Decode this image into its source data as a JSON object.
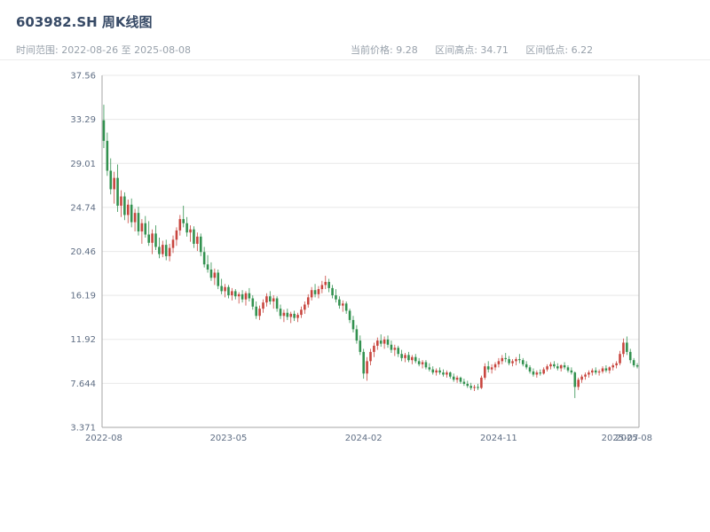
{
  "header": {
    "title": "603982.SH 周K线图",
    "time_range": {
      "label": "时间范围: ",
      "value": "2022-08-26 至 2025-08-08"
    },
    "stats": [
      {
        "label": "当前价格: ",
        "value": "9.28"
      },
      {
        "label": "区间高点: ",
        "value": "34.71"
      },
      {
        "label": "区间低点: ",
        "value": "6.22"
      }
    ]
  },
  "axes": {
    "y_min": 3.371,
    "y_max": 37.56,
    "y_ticks": [
      {
        "value": 3.371,
        "label": "3.371"
      },
      {
        "value": 7.644,
        "label": "7.644"
      },
      {
        "value": 11.92,
        "label": "11.92"
      },
      {
        "value": 16.19,
        "label": "16.19"
      },
      {
        "value": 20.46,
        "label": "20.46"
      },
      {
        "value": 24.74,
        "label": "24.74"
      },
      {
        "value": 29.01,
        "label": "29.01"
      },
      {
        "value": 33.29,
        "label": "33.29"
      },
      {
        "value": 37.56,
        "label": "37.56"
      }
    ],
    "x_ticks": [
      {
        "label": "2022-08",
        "week_index": 0
      },
      {
        "label": "2023-05",
        "week_index": 36
      },
      {
        "label": "2024-02",
        "week_index": 75
      },
      {
        "label": "2024-11",
        "week_index": 114
      },
      {
        "label": "2025-07",
        "week_index": 149
      },
      {
        "label": "2025-08",
        "week_index": 153
      }
    ]
  },
  "chart_data": {
    "type": "candlestick",
    "symbol": "603982.SH",
    "period": "weekly",
    "title": "603982.SH 周K线图",
    "date_start": "2022-08-26",
    "date_end": "2025-08-08",
    "current_price": 9.28,
    "range_high": 34.71,
    "range_low": 6.22,
    "ylim": [
      3.371,
      37.56
    ],
    "legend_position": "none",
    "grid": true,
    "colors": {
      "up": "#c8453e",
      "down": "#32914f",
      "grid": "#e8e8e8",
      "axis": "#a6a6a6"
    },
    "columns": [
      "date",
      "open",
      "high",
      "low",
      "close"
    ],
    "candles": [
      [
        "2022-08-26",
        33.2,
        34.71,
        30.5,
        31.2
      ],
      [
        "2022-09-02",
        31.2,
        32.0,
        27.8,
        28.3
      ],
      [
        "2022-09-09",
        28.3,
        29.5,
        26.0,
        26.5
      ],
      [
        "2022-09-16",
        26.5,
        28.2,
        25.1,
        27.6
      ],
      [
        "2022-09-23",
        27.6,
        28.9,
        24.3,
        24.9
      ],
      [
        "2022-09-30",
        24.9,
        26.4,
        23.8,
        25.8
      ],
      [
        "2022-10-07",
        25.8,
        26.2,
        23.5,
        24.0
      ],
      [
        "2022-10-14",
        24.0,
        25.5,
        23.2,
        25.0
      ],
      [
        "2022-10-21",
        25.0,
        25.6,
        22.8,
        23.3
      ],
      [
        "2022-10-28",
        23.3,
        24.6,
        22.4,
        24.2
      ],
      [
        "2022-11-04",
        24.2,
        24.8,
        22.0,
        22.4
      ],
      [
        "2022-11-11",
        22.4,
        23.6,
        21.2,
        23.2
      ],
      [
        "2022-11-18",
        23.2,
        23.9,
        21.8,
        22.1
      ],
      [
        "2022-11-25",
        22.1,
        23.4,
        21.0,
        21.3
      ],
      [
        "2022-12-02",
        21.3,
        22.6,
        20.2,
        22.2
      ],
      [
        "2022-12-09",
        22.2,
        23.0,
        20.6,
        20.9
      ],
      [
        "2022-12-16",
        20.9,
        21.8,
        19.8,
        20.2
      ],
      [
        "2022-12-23",
        20.2,
        21.5,
        19.9,
        21.1
      ],
      [
        "2022-12-30",
        21.1,
        21.6,
        19.6,
        20.0
      ],
      [
        "2023-01-06",
        20.0,
        21.2,
        19.5,
        20.8
      ],
      [
        "2023-01-13",
        20.8,
        22.0,
        20.3,
        21.6
      ],
      [
        "2023-01-20",
        21.6,
        22.8,
        21.0,
        22.5
      ],
      [
        "2023-01-27",
        22.5,
        24.0,
        22.0,
        23.6
      ],
      [
        "2023-02-03",
        23.6,
        24.9,
        22.8,
        23.2
      ],
      [
        "2023-02-10",
        23.2,
        23.8,
        21.9,
        22.3
      ],
      [
        "2023-02-17",
        22.3,
        23.0,
        21.4,
        22.6
      ],
      [
        "2023-02-24",
        22.6,
        22.9,
        20.8,
        21.2
      ],
      [
        "2023-03-03",
        21.2,
        22.3,
        20.5,
        21.9
      ],
      [
        "2023-03-10",
        21.9,
        22.2,
        20.0,
        20.4
      ],
      [
        "2023-03-17",
        20.4,
        20.9,
        18.9,
        19.2
      ],
      [
        "2023-03-24",
        19.2,
        20.1,
        18.4,
        18.7
      ],
      [
        "2023-03-31",
        18.7,
        19.4,
        17.6,
        17.9
      ],
      [
        "2023-04-07",
        17.9,
        18.8,
        17.2,
        18.4
      ],
      [
        "2023-04-14",
        18.4,
        18.7,
        16.8,
        17.1
      ],
      [
        "2023-04-21",
        17.1,
        17.8,
        16.3,
        16.6
      ],
      [
        "2023-04-28",
        16.6,
        17.3,
        16.0,
        17.0
      ],
      [
        "2023-05-05",
        17.0,
        17.2,
        15.9,
        16.2
      ],
      [
        "2023-05-12",
        16.2,
        16.9,
        15.7,
        16.6
      ],
      [
        "2023-05-19",
        16.6,
        16.8,
        15.8,
        16.1
      ],
      [
        "2023-05-26",
        16.1,
        16.5,
        15.4,
        16.3
      ],
      [
        "2023-06-02",
        16.3,
        16.7,
        15.5,
        15.8
      ],
      [
        "2023-06-09",
        15.8,
        16.6,
        15.2,
        16.4
      ],
      [
        "2023-06-16",
        16.4,
        16.9,
        15.6,
        15.9
      ],
      [
        "2023-06-23",
        15.9,
        16.2,
        14.8,
        15.1
      ],
      [
        "2023-06-30",
        15.1,
        15.6,
        13.9,
        14.2
      ],
      [
        "2023-07-07",
        14.2,
        15.2,
        13.8,
        14.9
      ],
      [
        "2023-07-14",
        14.9,
        15.8,
        14.5,
        15.5
      ],
      [
        "2023-07-21",
        15.5,
        16.4,
        15.1,
        16.1
      ],
      [
        "2023-07-28",
        16.1,
        16.6,
        15.3,
        15.6
      ],
      [
        "2023-08-04",
        15.6,
        16.2,
        14.9,
        15.9
      ],
      [
        "2023-08-11",
        15.9,
        16.1,
        14.6,
        14.9
      ],
      [
        "2023-08-18",
        14.9,
        15.3,
        13.9,
        14.2
      ],
      [
        "2023-08-25",
        14.2,
        14.8,
        13.6,
        14.5
      ],
      [
        "2023-09-01",
        14.5,
        14.9,
        13.8,
        14.1
      ],
      [
        "2023-09-08",
        14.1,
        14.6,
        13.5,
        14.4
      ],
      [
        "2023-09-15",
        14.4,
        14.7,
        13.7,
        14.0
      ],
      [
        "2023-09-22",
        14.0,
        14.5,
        13.6,
        14.3
      ],
      [
        "2023-09-29",
        14.3,
        15.1,
        14.0,
        14.8
      ],
      [
        "2023-10-06",
        14.8,
        15.6,
        14.4,
        15.3
      ],
      [
        "2023-10-13",
        15.3,
        16.3,
        15.0,
        16.0
      ],
      [
        "2023-10-20",
        16.0,
        17.0,
        15.7,
        16.7
      ],
      [
        "2023-10-27",
        16.7,
        17.3,
        16.0,
        16.3
      ],
      [
        "2023-11-03",
        16.3,
        17.1,
        15.9,
        16.8
      ],
      [
        "2023-11-10",
        16.8,
        17.6,
        16.4,
        17.2
      ],
      [
        "2023-11-17",
        17.2,
        18.1,
        16.8,
        17.5
      ],
      [
        "2023-11-24",
        17.5,
        17.8,
        16.5,
        16.9
      ],
      [
        "2023-12-01",
        16.9,
        17.2,
        15.9,
        16.2
      ],
      [
        "2023-12-08",
        16.2,
        16.8,
        15.5,
        15.8
      ],
      [
        "2023-12-15",
        15.8,
        16.1,
        14.9,
        15.2
      ],
      [
        "2023-12-22",
        15.2,
        15.7,
        14.6,
        15.4
      ],
      [
        "2023-12-29",
        15.4,
        15.6,
        14.4,
        14.7
      ],
      [
        "2024-01-05",
        14.7,
        14.9,
        13.5,
        13.8
      ],
      [
        "2024-01-12",
        13.8,
        14.2,
        12.6,
        12.9
      ],
      [
        "2024-01-19",
        12.9,
        13.3,
        11.5,
        11.8
      ],
      [
        "2024-01-26",
        11.8,
        12.3,
        10.4,
        10.7
      ],
      [
        "2024-02-02",
        10.7,
        11.0,
        8.1,
        8.6
      ],
      [
        "2024-02-09",
        8.6,
        10.2,
        7.9,
        9.8
      ],
      [
        "2024-02-16",
        9.8,
        11.0,
        9.4,
        10.7
      ],
      [
        "2024-02-23",
        10.7,
        11.6,
        10.2,
        11.3
      ],
      [
        "2024-03-01",
        11.3,
        12.1,
        10.9,
        11.8
      ],
      [
        "2024-03-08",
        11.8,
        12.4,
        11.2,
        11.5
      ],
      [
        "2024-03-15",
        11.5,
        12.2,
        11.0,
        11.9
      ],
      [
        "2024-03-22",
        11.9,
        12.3,
        11.1,
        11.4
      ],
      [
        "2024-03-29",
        11.4,
        11.8,
        10.6,
        10.9
      ],
      [
        "2024-04-05",
        10.9,
        11.4,
        10.3,
        11.1
      ],
      [
        "2024-04-12",
        11.1,
        11.3,
        10.2,
        10.5
      ],
      [
        "2024-04-19",
        10.5,
        10.9,
        9.8,
        10.1
      ],
      [
        "2024-04-26",
        10.1,
        10.6,
        9.7,
        10.4
      ],
      [
        "2024-05-03",
        10.4,
        10.7,
        9.7,
        9.9
      ],
      [
        "2024-05-10",
        9.9,
        10.4,
        9.5,
        10.2
      ],
      [
        "2024-05-17",
        10.2,
        10.5,
        9.6,
        9.8
      ],
      [
        "2024-05-24",
        9.8,
        10.1,
        9.3,
        9.5
      ],
      [
        "2024-05-31",
        9.5,
        9.9,
        9.1,
        9.7
      ],
      [
        "2024-06-07",
        9.7,
        9.9,
        9.0,
        9.2
      ],
      [
        "2024-06-14",
        9.2,
        9.6,
        8.8,
        9.0
      ],
      [
        "2024-06-21",
        9.0,
        9.3,
        8.5,
        8.7
      ],
      [
        "2024-06-28",
        8.7,
        9.1,
        8.4,
        8.9
      ],
      [
        "2024-07-05",
        8.9,
        9.2,
        8.5,
        8.7
      ],
      [
        "2024-07-12",
        8.7,
        9.0,
        8.3,
        8.5
      ],
      [
        "2024-07-19",
        8.5,
        8.9,
        8.2,
        8.7
      ],
      [
        "2024-07-26",
        8.7,
        8.8,
        8.1,
        8.3
      ],
      [
        "2024-08-02",
        8.3,
        8.6,
        7.8,
        8.0
      ],
      [
        "2024-08-09",
        8.0,
        8.4,
        7.7,
        8.2
      ],
      [
        "2024-08-16",
        8.2,
        8.3,
        7.6,
        7.8
      ],
      [
        "2024-08-23",
        7.8,
        8.1,
        7.4,
        7.6
      ],
      [
        "2024-08-30",
        7.6,
        7.9,
        7.2,
        7.4
      ],
      [
        "2024-09-06",
        7.4,
        7.7,
        7.0,
        7.2
      ],
      [
        "2024-09-13",
        7.2,
        7.5,
        6.9,
        7.3
      ],
      [
        "2024-09-20",
        7.3,
        7.6,
        7.0,
        7.2
      ],
      [
        "2024-09-27",
        7.2,
        8.4,
        7.1,
        8.2
      ],
      [
        "2024-10-04",
        8.2,
        9.6,
        8.0,
        9.3
      ],
      [
        "2024-10-11",
        9.3,
        9.8,
        8.7,
        9.0
      ],
      [
        "2024-10-18",
        9.0,
        9.5,
        8.6,
        9.2
      ],
      [
        "2024-10-25",
        9.2,
        9.7,
        8.9,
        9.5
      ],
      [
        "2024-11-01",
        9.5,
        10.1,
        9.2,
        9.8
      ],
      [
        "2024-11-08",
        9.8,
        10.4,
        9.5,
        10.1
      ],
      [
        "2024-11-15",
        10.1,
        10.6,
        9.7,
        10.0
      ],
      [
        "2024-11-22",
        10.0,
        10.3,
        9.4,
        9.6
      ],
      [
        "2024-11-29",
        9.6,
        10.0,
        9.3,
        9.8
      ],
      [
        "2024-12-06",
        9.8,
        10.2,
        9.4,
        10.0
      ],
      [
        "2024-12-13",
        10.0,
        10.5,
        9.6,
        9.9
      ],
      [
        "2024-12-20",
        9.9,
        10.1,
        9.3,
        9.5
      ],
      [
        "2024-12-27",
        9.5,
        9.8,
        9.0,
        9.2
      ],
      [
        "2025-01-03",
        9.2,
        9.4,
        8.6,
        8.8
      ],
      [
        "2025-01-10",
        8.8,
        9.1,
        8.3,
        8.5
      ],
      [
        "2025-01-17",
        8.5,
        8.9,
        8.2,
        8.7
      ],
      [
        "2025-01-24",
        8.7,
        9.0,
        8.4,
        8.6
      ],
      [
        "2025-01-31",
        8.6,
        9.2,
        8.5,
        9.0
      ],
      [
        "2025-02-07",
        9.0,
        9.5,
        8.8,
        9.3
      ],
      [
        "2025-02-14",
        9.3,
        9.7,
        9.0,
        9.5
      ],
      [
        "2025-02-21",
        9.5,
        9.8,
        9.1,
        9.3
      ],
      [
        "2025-02-28",
        9.3,
        9.6,
        8.9,
        9.1
      ],
      [
        "2025-03-07",
        9.1,
        9.5,
        8.8,
        9.4
      ],
      [
        "2025-03-14",
        9.4,
        9.7,
        9.0,
        9.2
      ],
      [
        "2025-03-21",
        9.2,
        9.4,
        8.7,
        8.9
      ],
      [
        "2025-03-28",
        8.9,
        9.2,
        8.5,
        8.7
      ],
      [
        "2025-04-04",
        8.7,
        8.8,
        6.22,
        7.3
      ],
      [
        "2025-04-11",
        7.3,
        8.2,
        7.0,
        8.0
      ],
      [
        "2025-04-18",
        8.0,
        8.5,
        7.7,
        8.3
      ],
      [
        "2025-04-25",
        8.3,
        8.7,
        8.0,
        8.5
      ],
      [
        "2025-05-02",
        8.5,
        8.9,
        8.2,
        8.7
      ],
      [
        "2025-05-09",
        8.7,
        9.1,
        8.4,
        8.9
      ],
      [
        "2025-05-16",
        8.9,
        9.2,
        8.5,
        8.7
      ],
      [
        "2025-05-23",
        8.7,
        9.0,
        8.4,
        8.8
      ],
      [
        "2025-05-30",
        8.8,
        9.3,
        8.6,
        9.1
      ],
      [
        "2025-06-06",
        9.1,
        9.4,
        8.7,
        8.9
      ],
      [
        "2025-06-13",
        8.9,
        9.3,
        8.6,
        9.2
      ],
      [
        "2025-06-20",
        9.2,
        9.6,
        8.9,
        9.4
      ],
      [
        "2025-06-27",
        9.4,
        9.8,
        9.1,
        9.6
      ],
      [
        "2025-07-04",
        9.6,
        10.8,
        9.4,
        10.5
      ],
      [
        "2025-07-11",
        10.5,
        12.0,
        10.2,
        11.6
      ],
      [
        "2025-07-18",
        11.6,
        12.2,
        10.4,
        10.7
      ],
      [
        "2025-07-25",
        10.7,
        11.0,
        9.6,
        9.9
      ],
      [
        "2025-08-01",
        9.9,
        10.1,
        9.2,
        9.4
      ],
      [
        "2025-08-08",
        9.4,
        9.6,
        9.1,
        9.28
      ]
    ]
  }
}
